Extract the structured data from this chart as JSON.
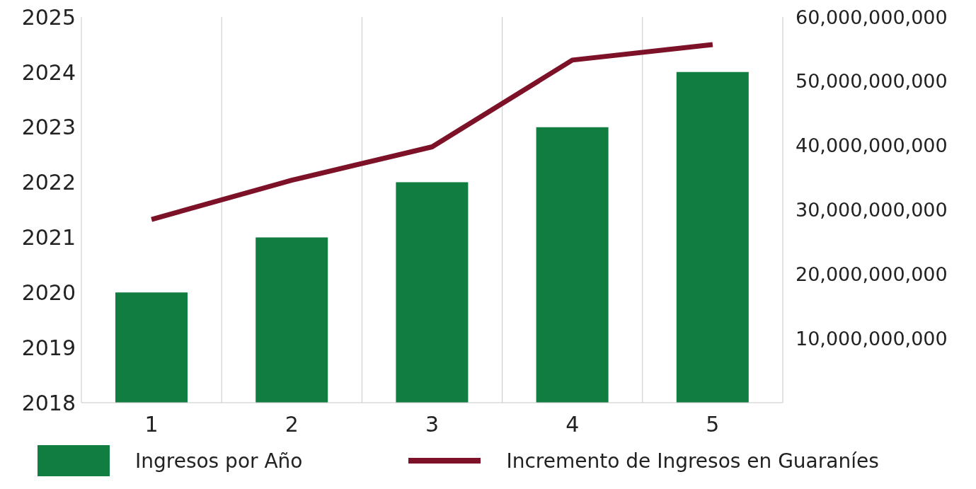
{
  "chart_data": {
    "type": "bar",
    "categories": [
      "1",
      "2",
      "3",
      "4",
      "5"
    ],
    "series": [
      {
        "name": "Ingresos por Año",
        "color": "#117d41",
        "values": [
          2020,
          2021,
          2022,
          2023,
          2024
        ]
      },
      {
        "name": "Incremento de Ingresos en Guaraníes",
        "type": "line",
        "axis": "y2",
        "color": "#7d1128",
        "values": [
          28500000000,
          34600000000,
          39800000000,
          53300000000,
          55700000000
        ]
      }
    ],
    "ylim": [
      2018,
      2025
    ],
    "yticks": [
      2018,
      2019,
      2020,
      2021,
      2022,
      2023,
      2024,
      2025
    ],
    "y2lim": [
      0,
      60000000000
    ],
    "y2ticks": [
      {
        "value": 10000000000,
        "label": "10,000,000,000"
      },
      {
        "value": 20000000000,
        "label": "20,000,000,000"
      },
      {
        "value": 30000000000,
        "label": "30,000,000,000"
      },
      {
        "value": 40000000000,
        "label": "40,000,000,000"
      },
      {
        "value": 50000000000,
        "label": "50,000,000,000"
      },
      {
        "value": 60000000000,
        "label": "60,000,000,000"
      }
    ],
    "grid": "x",
    "legend": "bottom",
    "marker": "none",
    "line_style": "solid"
  }
}
